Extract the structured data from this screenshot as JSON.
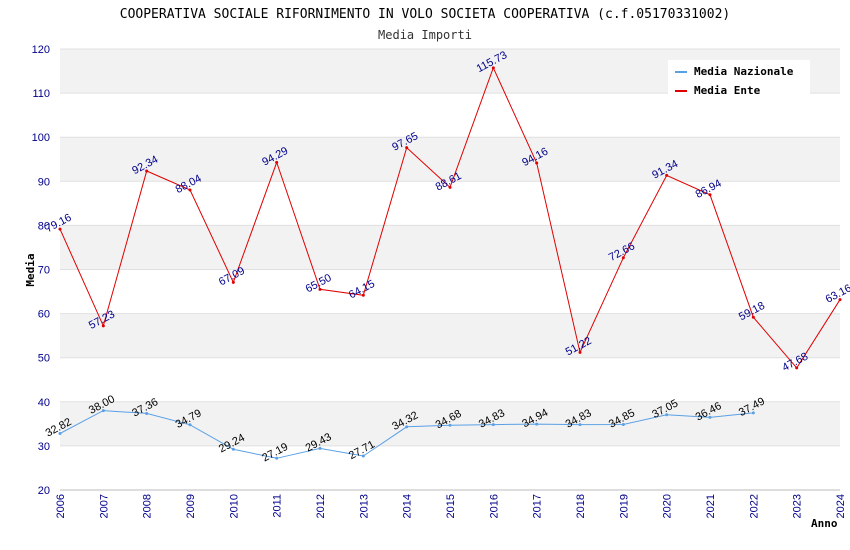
{
  "chart_data": {
    "type": "line",
    "title": "COOPERATIVA SOCIALE RIFORNIMENTO IN VOLO SOCIETA COOPERATIVA (c.f.05170331002)",
    "subtitle": "Media Importi",
    "xlabel": "Anno",
    "ylabel": "Media",
    "ylim": [
      20,
      120
    ],
    "yticks": [
      "20",
      "30",
      "40",
      "50",
      "60",
      "70",
      "80",
      "90",
      "100",
      "110",
      "120"
    ],
    "x": [
      "2006",
      "2007",
      "2008",
      "2009",
      "2010",
      "2011",
      "2012",
      "2013",
      "2014",
      "2015",
      "2016",
      "2017",
      "2018",
      "2019",
      "2020",
      "2021",
      "2022",
      "2023",
      "2024"
    ],
    "legend_position": "top-right",
    "series": [
      {
        "name": "Media Nazionale",
        "color": "#5aa0e6",
        "values": [
          32.82,
          38.0,
          37.36,
          34.79,
          29.24,
          27.19,
          29.43,
          27.71,
          34.32,
          34.68,
          34.83,
          34.94,
          34.83,
          34.85,
          37.05,
          36.46,
          37.49,
          null,
          null
        ],
        "labels": [
          "32.82",
          "38.00",
          "37.36",
          "34.79",
          "29.24",
          "27.19",
          "29.43",
          "27.71",
          "34.32",
          "34.68",
          "34.83",
          "34.94",
          "34.83",
          "34.85",
          "37.05",
          "36.46",
          "37.49",
          null,
          null
        ]
      },
      {
        "name": "Media Ente",
        "color": "#e00000",
        "values": [
          79.16,
          57.23,
          92.34,
          88.04,
          67.09,
          94.29,
          65.5,
          64.15,
          97.65,
          88.61,
          115.73,
          94.16,
          51.22,
          72.66,
          91.34,
          86.94,
          59.18,
          47.68,
          63.16
        ],
        "labels": [
          "79.16",
          "57.23",
          "92.34",
          "88.04",
          "67.09",
          "94.29",
          "65.50",
          "64.15",
          "97.65",
          "88.61",
          "115.73",
          "94.16",
          "51.22",
          "72.66",
          "91.34",
          "86.94",
          "59.18",
          "47.68",
          "63.16"
        ]
      }
    ]
  }
}
